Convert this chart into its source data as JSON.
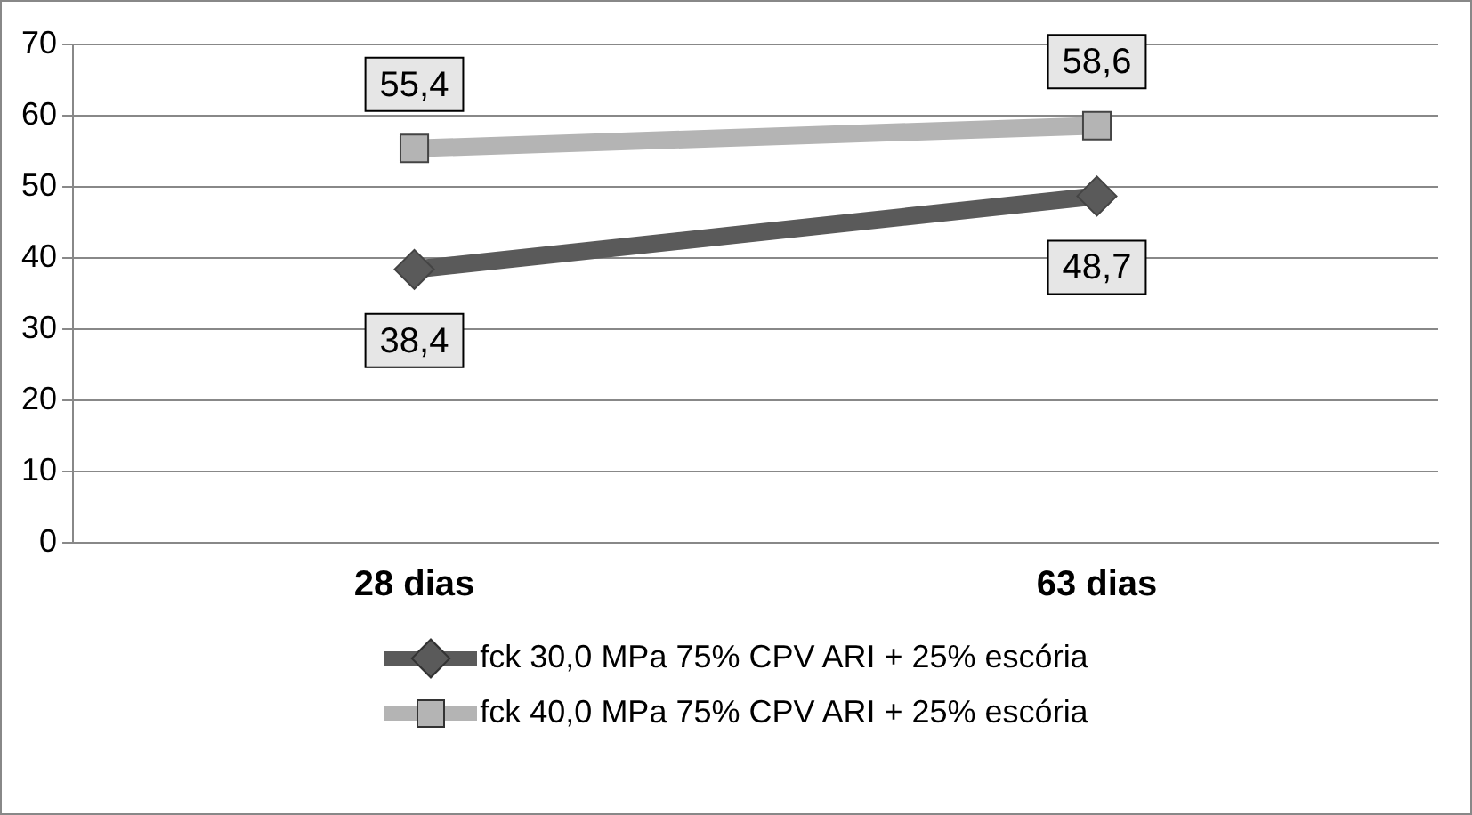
{
  "chart_data": {
    "type": "line",
    "categories": [
      "28 dias",
      "63 dias"
    ],
    "ylim": [
      0,
      70
    ],
    "yticks": [
      0,
      10,
      20,
      30,
      40,
      50,
      60,
      70
    ],
    "grid": "y",
    "legend": "bottom",
    "line_style": "solid",
    "series": [
      {
        "name": "fck 30,0 MPa 75% CPV ARI + 25% escória",
        "color": "#5a5a5a",
        "marker": "diamond",
        "values": [
          38.4,
          48.7
        ],
        "value_labels": [
          "38,4",
          "48,7"
        ]
      },
      {
        "name": "fck 40,0 MPa 75% CPV ARI + 25% escória",
        "color": "#b4b4b4",
        "marker": "square",
        "values": [
          55.4,
          58.6
        ],
        "value_labels": [
          "55,4",
          "58,6"
        ]
      }
    ]
  }
}
